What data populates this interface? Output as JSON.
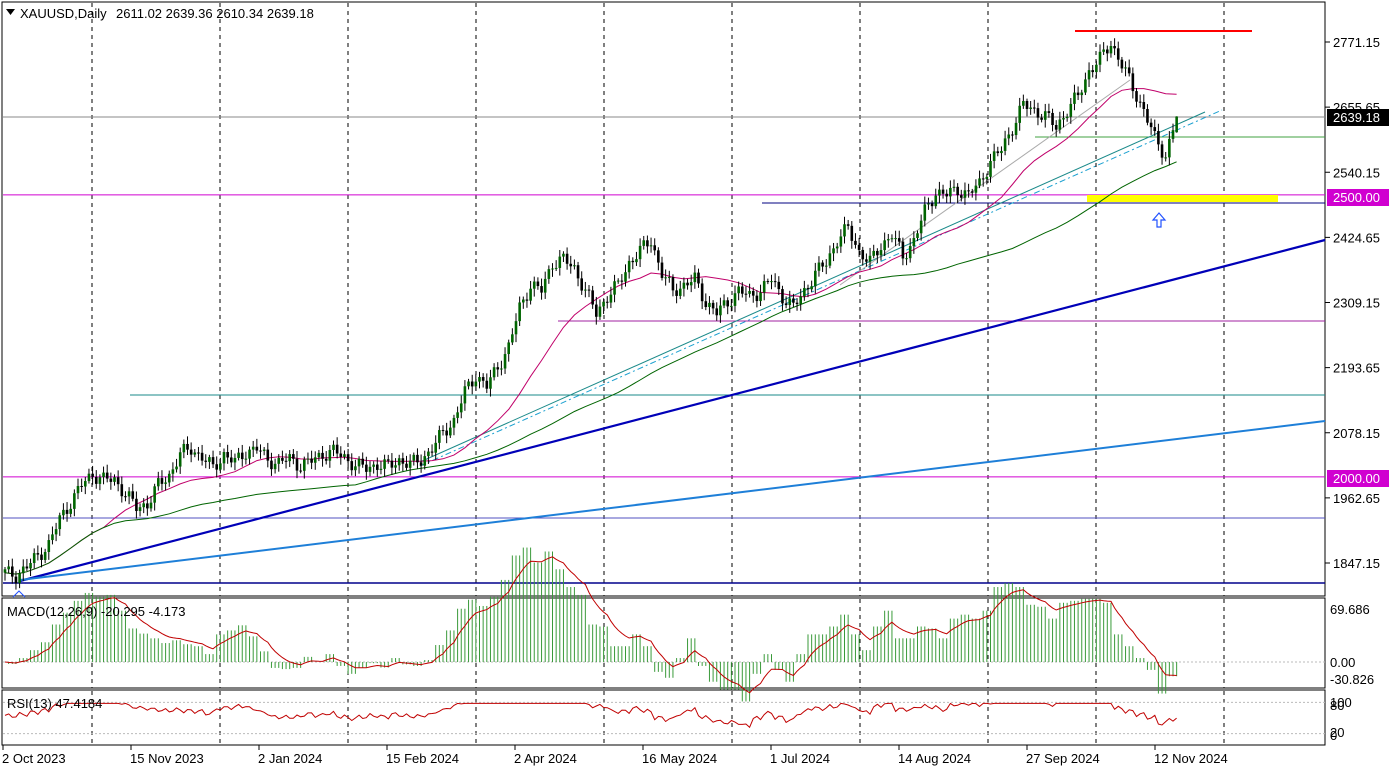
{
  "symbol_header": {
    "label": "XAUUSD,Daily",
    "ohlc": "2611.02 2639.36 2610.34 2639.18"
  },
  "colors": {
    "background": "#ffffff",
    "candle_up": "#006400",
    "candle_down": "#000000",
    "sma_fast": "#c0006a",
    "sma_mid": "#1a8a8a",
    "sma_slow": "#006400",
    "trend_main": "#0000b8",
    "trend_long": "#1e7fd8",
    "level_magenta": "#d000d0",
    "resistance": "#ff0000",
    "support_zone": "#ffff00",
    "macd_hist": "#3a9a3a",
    "macd_signal": "#c00000",
    "rsi_line": "#c00000",
    "arrow": "#2050ff"
  },
  "price_axis": {
    "ticks": [
      "2771.15",
      "2655.65",
      "2540.15",
      "2424.65",
      "2309.15",
      "2193.65",
      "2078.15",
      "1962.65",
      "1847.15"
    ],
    "current_price_label": "2639.18",
    "level_labels": [
      "2500.00",
      "2000.00"
    ]
  },
  "time_axis": {
    "labels": [
      "2 Oct 2023",
      "15 Nov 2023",
      "2 Jan 2024",
      "15 Feb 2024",
      "2 Apr 2024",
      "16 May 2024",
      "1 Jul 2024",
      "14 Aug 2024",
      "27 Sep 2024",
      "12 Nov 2024"
    ]
  },
  "macd_panel": {
    "label": "MACD(12,26,9) -20.295 -4.173",
    "ticks": [
      "69.686",
      "0.00",
      "-30.826"
    ]
  },
  "rsi_panel": {
    "label": "RSI(13) 47.4184",
    "ticks": [
      "100",
      "80",
      "20",
      "0"
    ]
  },
  "chart_data": {
    "type": "candlestick",
    "symbol": "XAUUSD",
    "timeframe": "Daily",
    "last_bar": {
      "open": 2611.02,
      "high": 2639.36,
      "low": 2610.34,
      "close": 2639.18
    },
    "ylim": [
      1820,
      2800
    ],
    "x_ticks": [
      "2 Oct 2023",
      "15 Nov 2023",
      "2 Jan 2024",
      "15 Feb 2024",
      "2 Apr 2024",
      "16 May 2024",
      "1 Jul 2024",
      "14 Aug 2024",
      "27 Sep 2024",
      "12 Nov 2024"
    ],
    "y_ticks": [
      2771.15,
      2655.65,
      2540.15,
      2424.65,
      2309.15,
      2193.65,
      2078.15,
      1962.65,
      1847.15
    ],
    "close_path": [
      [
        0,
        1830
      ],
      [
        3,
        1825
      ],
      [
        6,
        1840
      ],
      [
        9,
        1860
      ],
      [
        12,
        1880
      ],
      [
        15,
        1925
      ],
      [
        18,
        1955
      ],
      [
        21,
        1985
      ],
      [
        24,
        2005
      ],
      [
        27,
        1995
      ],
      [
        30,
        1995
      ],
      [
        33,
        1970
      ],
      [
        36,
        1945
      ],
      [
        39,
        1952
      ],
      [
        42,
        1985
      ],
      [
        45,
        2003
      ],
      [
        48,
        2040
      ],
      [
        51,
        2050
      ],
      [
        54,
        2035
      ],
      [
        57,
        2015
      ],
      [
        60,
        2040
      ],
      [
        63,
        2025
      ],
      [
        66,
        2045
      ],
      [
        69,
        2050
      ],
      [
        72,
        2030
      ],
      [
        75,
        2025
      ],
      [
        78,
        2032
      ],
      [
        81,
        2020
      ],
      [
        84,
        2028
      ],
      [
        87,
        2040
      ],
      [
        90,
        2045
      ],
      [
        93,
        2035
      ],
      [
        96,
        2020
      ],
      [
        99,
        2015
      ],
      [
        102,
        2022
      ],
      [
        105,
        2018
      ],
      [
        108,
        2030
      ],
      [
        111,
        2022
      ],
      [
        114,
        2030
      ],
      [
        117,
        2050
      ],
      [
        120,
        2078
      ],
      [
        123,
        2100
      ],
      [
        126,
        2150
      ],
      [
        129,
        2180
      ],
      [
        132,
        2160
      ],
      [
        135,
        2195
      ],
      [
        138,
        2230
      ],
      [
        141,
        2300
      ],
      [
        144,
        2340
      ],
      [
        147,
        2330
      ],
      [
        150,
        2380
      ],
      [
        153,
        2385
      ],
      [
        156,
        2370
      ],
      [
        159,
        2330
      ],
      [
        162,
        2290
      ],
      [
        165,
        2320
      ],
      [
        168,
        2340
      ],
      [
        171,
        2380
      ],
      [
        174,
        2400
      ],
      [
        177,
        2420
      ],
      [
        180,
        2360
      ],
      [
        183,
        2330
      ],
      [
        186,
        2340
      ],
      [
        189,
        2350
      ],
      [
        192,
        2310
      ],
      [
        195,
        2290
      ],
      [
        198,
        2310
      ],
      [
        201,
        2330
      ],
      [
        204,
        2320
      ],
      [
        207,
        2330
      ],
      [
        210,
        2350
      ],
      [
        213,
        2320
      ],
      [
        216,
        2300
      ],
      [
        219,
        2330
      ],
      [
        222,
        2360
      ],
      [
        225,
        2380
      ],
      [
        228,
        2420
      ],
      [
        231,
        2440
      ],
      [
        234,
        2400
      ],
      [
        237,
        2380
      ],
      [
        240,
        2410
      ],
      [
        243,
        2430
      ],
      [
        246,
        2390
      ],
      [
        249,
        2420
      ],
      [
        252,
        2470
      ],
      [
        255,
        2505
      ],
      [
        258,
        2500
      ],
      [
        261,
        2510
      ],
      [
        264,
        2500
      ],
      [
        267,
        2520
      ],
      [
        270,
        2560
      ],
      [
        273,
        2580
      ],
      [
        276,
        2620
      ],
      [
        279,
        2660
      ],
      [
        282,
        2650
      ],
      [
        285,
        2640
      ],
      [
        288,
        2620
      ],
      [
        291,
        2650
      ],
      [
        294,
        2675
      ],
      [
        297,
        2720
      ],
      [
        300,
        2740
      ],
      [
        303,
        2770
      ],
      [
        306,
        2730
      ],
      [
        309,
        2690
      ],
      [
        312,
        2650
      ],
      [
        315,
        2600
      ],
      [
        318,
        2570
      ],
      [
        321,
        2639
      ]
    ],
    "key_levels": {
      "resistance": 2785,
      "support_zone": [
        2497,
        2510
      ],
      "round_levels": [
        2500.0,
        2000.0
      ]
    },
    "indicators": {
      "macd": {
        "params": "12,26,9",
        "main": -20.295,
        "signal": -4.173,
        "range": [
          -30.826,
          69.686
        ]
      },
      "rsi": {
        "period": 13,
        "value": 47.4184,
        "levels": [
          80,
          20
        ]
      }
    }
  }
}
